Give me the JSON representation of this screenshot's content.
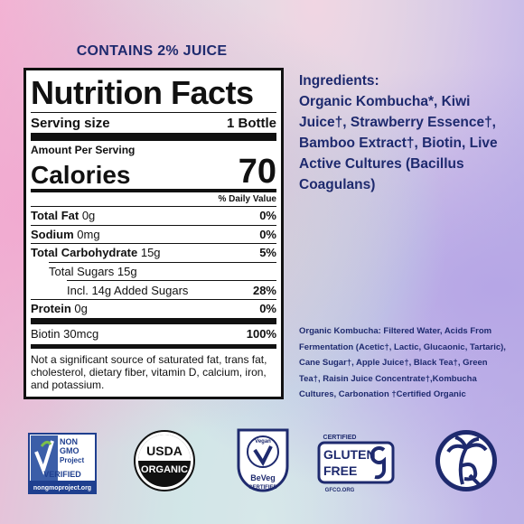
{
  "header": {
    "juice_note": "CONTAINS 2% JUICE"
  },
  "nutrition": {
    "title": "Nutrition Facts",
    "serving_label": "Serving size",
    "serving_value": "1 Bottle",
    "amount_per_serving": "Amount Per Serving",
    "calories_label": "Calories",
    "calories_value": 70,
    "daily_value_header": "% Daily Value",
    "rows": [
      {
        "label": "Total Fat",
        "amount": "0g",
        "dv": "0%"
      },
      {
        "label": "Sodium",
        "amount": "0mg",
        "dv": "0%"
      },
      {
        "label": "Total Carbohydrate",
        "amount": "15g",
        "dv": "5%"
      },
      {
        "label": "Total Sugars",
        "amount": "15g"
      },
      {
        "label": "Incl. 14g Added Sugars",
        "dv": "28%"
      },
      {
        "label": "Protein",
        "amount": "0g",
        "dv": "0%"
      },
      {
        "label": "Biotin",
        "amount": "30mcg",
        "dv": "100%"
      }
    ],
    "footnote": "Not a significant source of saturated fat, trans fat, cholesterol, dietary fiber, vitamin D, calcium, iron, and potassium."
  },
  "ingredients": {
    "heading": "Ingredients:",
    "text": "Organic Kombucha*, Kiwi Juice†, Strawberry Essence†, Bamboo Extract†, Biotin, Live Active Cultures (Bacillus Coagulans)",
    "detail": "Organic Kombucha: Filtered Water, Acids From Fermentation (Acetic†, Lactic, Glucaonic, Tartaric), Cane Sugar†, Apple Juice†, Black Tea†, Green Tea†, Raisin Juice Concentrate†,Kombucha Cultures, Carbonation †Certified Organic"
  },
  "logos": {
    "non_gmo": {
      "line1": "NON",
      "line2": "GMO",
      "line3": "Project",
      "line4": "VERIFIED",
      "url": "nongmoproject.org"
    },
    "usda": {
      "top": "USDA",
      "bottom": "ORGANIC"
    },
    "vegan": {
      "top": "Vegan",
      "middle": "BeVeg",
      "bottom": "CERTIFIED"
    },
    "gluten_free": {
      "top": "CERTIFIED",
      "line1": "GLUTEN",
      "line2": "FREE",
      "url": "GFCO.ORG"
    }
  }
}
